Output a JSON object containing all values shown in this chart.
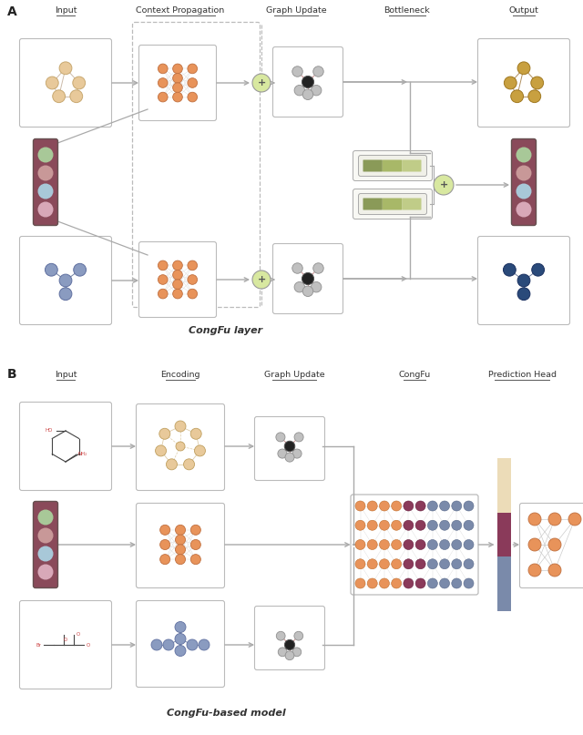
{
  "fig_width": 6.4,
  "fig_height": 8.07,
  "bg_color": "#ffffff",
  "panel_A_label": "A",
  "panel_B_label": "B",
  "section_A_headers": [
    "Input",
    "Context Propagation",
    "Graph Update",
    "Bottleneck",
    "Output"
  ],
  "section_B_headers": [
    "Input",
    "Encoding",
    "Graph Update",
    "CongFu",
    "Prediction Head"
  ],
  "congfu_layer_label": "CongFu layer",
  "congfu_model_label": "CongFu-based model",
  "graph_node_color_warm": "#e8c99a",
  "graph_node_color_dark": "#8a9bc0",
  "graph_node_color_output_warm": "#c8a040",
  "graph_node_color_output_dark": "#2a4a7a",
  "nn_node_color": "#e8935a",
  "nn_node_color_dark": "#7a8aaa",
  "pill_colors_A": [
    "#a8c898",
    "#c89898",
    "#a8c8d8",
    "#d8a8b8"
  ],
  "pill_bg": "#8a4a5a",
  "plus_circle_color": "#d8e8a0",
  "bottleneck_bar_colors": [
    "#8a9a58",
    "#a8b868",
    "#c0cc88"
  ],
  "gray_edge_color": "#aaaaaa",
  "box_edge_color": "#bbbbbb",
  "font_color": "#333333",
  "bar_beige": "#ecdcb8",
  "bar_wine": "#8a3a5a",
  "bar_blue_gray": "#7a8aaa",
  "congfu_orange": "#e8935a",
  "congfu_wine": "#8a3a5a",
  "congfu_dark": "#7a8aaa",
  "pred_head_orange": "#e8935a"
}
